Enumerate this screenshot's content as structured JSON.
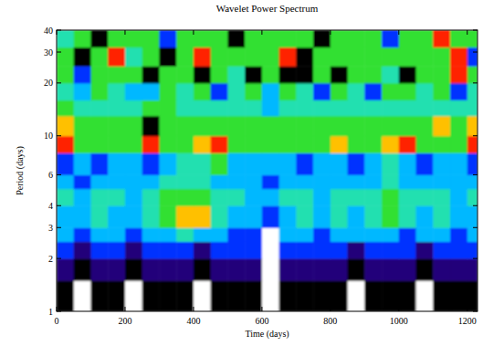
{
  "chart_data": {
    "type": "heatmap",
    "title": "Wavelet Power Spectrum",
    "x_label": "Time (days)",
    "y_label": "Period (days)",
    "xlim": [
      0,
      1230
    ],
    "ylim": [
      1,
      40
    ],
    "log": "y",
    "xticks": [
      0,
      200,
      400,
      600,
      800,
      1000,
      1200
    ],
    "yticks": [
      1,
      2,
      3,
      4,
      6,
      10,
      20,
      30,
      40
    ],
    "zlim": [
      0,
      8
    ],
    "x_edges": [
      0,
      50,
      100,
      150,
      200,
      250,
      300,
      350,
      400,
      450,
      500,
      550,
      600,
      650,
      700,
      750,
      800,
      850,
      900,
      950,
      1000,
      1050,
      1100,
      1150,
      1200,
      1230
    ],
    "y_edges": [
      1,
      1.5,
      2,
      2.5,
      3,
      4,
      5,
      6,
      8,
      10,
      13,
      16,
      20,
      25,
      32,
      40
    ],
    "cells": [
      [
        1,
        0,
        1,
        1,
        0,
        1,
        1,
        1,
        0,
        1,
        1,
        1,
        0,
        1,
        1,
        1,
        1,
        0,
        1,
        1,
        1,
        0,
        1,
        1,
        1
      ],
      [
        2,
        1,
        2,
        2,
        1,
        2,
        2,
        2,
        1,
        2,
        2,
        2,
        0,
        2,
        2,
        2,
        2,
        1,
        2,
        2,
        2,
        1,
        2,
        2,
        2
      ],
      [
        3,
        2,
        3,
        3,
        2,
        3,
        3,
        3,
        2,
        3,
        3,
        3,
        0,
        3,
        3,
        3,
        3,
        2,
        3,
        3,
        3,
        2,
        3,
        3,
        3
      ],
      [
        4,
        3,
        4,
        4,
        3,
        4,
        4,
        5,
        4,
        4,
        3,
        3,
        0,
        4,
        4,
        3,
        4,
        4,
        4,
        4,
        3,
        4,
        4,
        3,
        4
      ],
      [
        4,
        4,
        5,
        4,
        4,
        5,
        6,
        7,
        7,
        5,
        4,
        4,
        3,
        4,
        5,
        4,
        5,
        4,
        5,
        6,
        5,
        4,
        5,
        4,
        4
      ],
      [
        5,
        4,
        5,
        5,
        4,
        5,
        6,
        6,
        6,
        5,
        5,
        4,
        4,
        5,
        5,
        4,
        5,
        5,
        5,
        6,
        5,
        5,
        5,
        4,
        5
      ],
      [
        4,
        3,
        4,
        4,
        4,
        4,
        5,
        5,
        5,
        4,
        4,
        4,
        3,
        4,
        4,
        4,
        4,
        4,
        4,
        5,
        4,
        4,
        4,
        4,
        4
      ],
      [
        3,
        4,
        3,
        4,
        4,
        3,
        4,
        5,
        5,
        6,
        4,
        4,
        4,
        4,
        3,
        4,
        4,
        3,
        4,
        5,
        4,
        3,
        4,
        4,
        3
      ],
      [
        8,
        6,
        6,
        6,
        6,
        8,
        6,
        6,
        7,
        8,
        6,
        6,
        6,
        6,
        6,
        6,
        7,
        6,
        6,
        7,
        8,
        6,
        6,
        6,
        8
      ],
      [
        7,
        6,
        6,
        6,
        6,
        1,
        6,
        6,
        6,
        6,
        6,
        6,
        6,
        6,
        6,
        6,
        6,
        6,
        6,
        6,
        6,
        6,
        7,
        6,
        7
      ],
      [
        6,
        5,
        5,
        5,
        5,
        6,
        6,
        5,
        5,
        5,
        5,
        5,
        4,
        5,
        5,
        5,
        5,
        5,
        5,
        5,
        5,
        5,
        5,
        5,
        5
      ],
      [
        5,
        4,
        6,
        5,
        4,
        4,
        6,
        5,
        6,
        3,
        5,
        6,
        4,
        6,
        5,
        3,
        6,
        5,
        3,
        6,
        6,
        5,
        6,
        3,
        5
      ],
      [
        6,
        3,
        6,
        6,
        6,
        1,
        6,
        6,
        1,
        6,
        5,
        1,
        6,
        1,
        1,
        6,
        1,
        6,
        6,
        5,
        1,
        6,
        6,
        8,
        6
      ],
      [
        6,
        1,
        6,
        8,
        5,
        6,
        1,
        6,
        8,
        6,
        6,
        6,
        6,
        8,
        1,
        6,
        6,
        6,
        6,
        6,
        6,
        6,
        6,
        8,
        3
      ],
      [
        5,
        6,
        1,
        6,
        6,
        6,
        3,
        6,
        6,
        6,
        1,
        6,
        6,
        6,
        6,
        1,
        6,
        6,
        6,
        3,
        6,
        6,
        8,
        6,
        6
      ]
    ]
  }
}
